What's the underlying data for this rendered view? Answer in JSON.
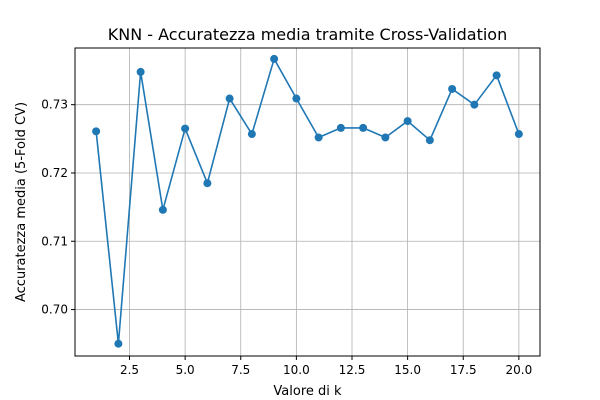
{
  "chart_data": {
    "type": "line",
    "title": "KNN - Accuratezza media tramite Cross-Validation",
    "xlabel": "Valore di k",
    "ylabel": "Accuratezza media (5-Fold CV)",
    "xlim": [
      0.05,
      20.95
    ],
    "ylim": [
      0.6932,
      0.7383
    ],
    "xticks": [
      2.5,
      5.0,
      7.5,
      10.0,
      12.5,
      15.0,
      17.5,
      20.0
    ],
    "xtick_labels": [
      "2.5",
      "5.0",
      "7.5",
      "10.0",
      "12.5",
      "15.0",
      "17.5",
      "20.0"
    ],
    "yticks": [
      0.7,
      0.71,
      0.72,
      0.73
    ],
    "ytick_labels": [
      "0.70",
      "0.71",
      "0.72",
      "0.73"
    ],
    "grid": true,
    "series": [
      {
        "color": "#1f77b4",
        "marker": "circle",
        "x": [
          1,
          2,
          3,
          4,
          5,
          6,
          7,
          8,
          9,
          10,
          11,
          12,
          13,
          14,
          15,
          16,
          17,
          18,
          19,
          20
        ],
        "y": [
          0.7261,
          0.695,
          0.7348,
          0.7146,
          0.7265,
          0.7185,
          0.7309,
          0.7257,
          0.7367,
          0.7309,
          0.7252,
          0.7266,
          0.7266,
          0.7252,
          0.7276,
          0.7248,
          0.7323,
          0.73,
          0.7343,
          0.7257
        ]
      }
    ]
  }
}
